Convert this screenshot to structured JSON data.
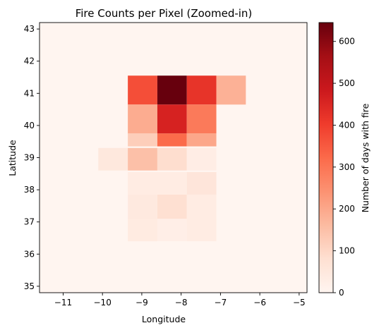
{
  "chart_data": {
    "type": "heatmap",
    "title": "Fire Counts per Pixel (Zoomed-in)",
    "xlabel": "Longitude",
    "ylabel": "Latitude",
    "colorbar_label": "Number of days with fire",
    "colormap": "Reds",
    "colormap_stops": [
      "#fff5f0",
      "#fee0d2",
      "#fcbba1",
      "#fc9272",
      "#fb6a4a",
      "#ef3b2c",
      "#cb181d",
      "#a50f15",
      "#67000d"
    ],
    "xlim": [
      -11.6,
      -4.8
    ],
    "ylim": [
      34.8,
      43.2
    ],
    "xticks": [
      -11,
      -10,
      -9,
      -8,
      -7,
      -6,
      -5
    ],
    "yticks": [
      35,
      36,
      37,
      38,
      39,
      40,
      41,
      42,
      43
    ],
    "xtick_labels": [
      "−11",
      "−10",
      "−9",
      "−8",
      "−7",
      "−6",
      "−5"
    ],
    "ytick_labels": [
      "35",
      "36",
      "37",
      "38",
      "39",
      "40",
      "41",
      "42",
      "43"
    ],
    "vmin": 0,
    "vmax": 645,
    "colorbar_ticks": [
      0,
      100,
      200,
      300,
      400,
      500,
      600
    ],
    "colorbar_tick_labels": [
      "0",
      "100",
      "200",
      "300",
      "400",
      "500",
      "600"
    ],
    "background_value": 0,
    "cell_width_deg": 0.75,
    "cell_height_deg": 0.9,
    "cells": [
      {
        "lon": -8.98,
        "lat": 41.1,
        "value": 370
      },
      {
        "lon": -8.23,
        "lat": 41.1,
        "value": 645
      },
      {
        "lon": -7.48,
        "lat": 41.1,
        "value": 420
      },
      {
        "lon": -6.73,
        "lat": 41.1,
        "value": 180
      },
      {
        "lon": -8.98,
        "lat": 40.2,
        "value": 190
      },
      {
        "lon": -8.23,
        "lat": 40.2,
        "value": 460
      },
      {
        "lon": -7.48,
        "lat": 40.2,
        "value": 290
      },
      {
        "lon": -8.98,
        "lat": 39.55,
        "value": 120,
        "height": 0.4
      },
      {
        "lon": -8.23,
        "lat": 39.55,
        "value": 320,
        "height": 0.4
      },
      {
        "lon": -7.48,
        "lat": 39.55,
        "value": 200,
        "height": 0.4
      },
      {
        "lon": -9.73,
        "lat": 38.95,
        "value": 50,
        "height": 0.7
      },
      {
        "lon": -8.98,
        "lat": 38.95,
        "value": 150,
        "height": 0.7
      },
      {
        "lon": -8.23,
        "lat": 38.95,
        "value": 85,
        "height": 0.7
      },
      {
        "lon": -7.48,
        "lat": 38.95,
        "value": 30,
        "height": 0.7
      },
      {
        "lon": -8.98,
        "lat": 38.2,
        "value": 35,
        "height": 0.7
      },
      {
        "lon": -8.23,
        "lat": 38.2,
        "value": 35,
        "height": 0.7
      },
      {
        "lon": -7.48,
        "lat": 38.2,
        "value": 60,
        "height": 0.7
      },
      {
        "lon": -8.98,
        "lat": 37.4,
        "value": 45
      },
      {
        "lon": -8.23,
        "lat": 37.4,
        "value": 80
      },
      {
        "lon": -7.48,
        "lat": 37.4,
        "value": 35
      },
      {
        "lon": -8.98,
        "lat": 36.75,
        "value": 40,
        "height": 0.7
      },
      {
        "lon": -8.23,
        "lat": 36.75,
        "value": 25,
        "height": 0.7
      },
      {
        "lon": -7.48,
        "lat": 36.75,
        "value": 35,
        "height": 0.7
      }
    ]
  }
}
